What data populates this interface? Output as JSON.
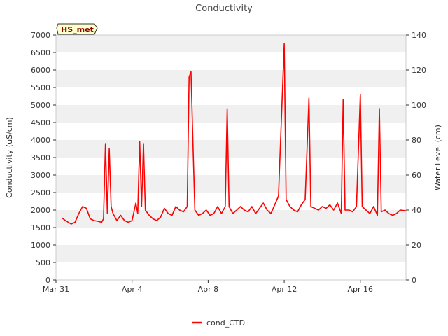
{
  "chart_data": {
    "type": "line",
    "title": "Conductivity",
    "badge": "HS_met",
    "ylabel_left": "Conductivity (uS/cm)",
    "ylabel_right": "Water Level (cm)",
    "xlabel": "",
    "x_range_days": [
      0,
      18.4
    ],
    "x_ticks": [
      {
        "label": "Mar 31",
        "day": 0
      },
      {
        "label": "Apr 4",
        "day": 4
      },
      {
        "label": "Apr 8",
        "day": 8
      },
      {
        "label": "Apr 12",
        "day": 12
      },
      {
        "label": "Apr 16",
        "day": 16
      }
    ],
    "ylim_left": [
      0,
      7000
    ],
    "y_ticks_left": [
      0,
      500,
      1000,
      1500,
      2000,
      2500,
      3000,
      3500,
      4000,
      4500,
      5000,
      5500,
      6000,
      6500,
      7000
    ],
    "ylim_right": [
      0,
      140
    ],
    "y_ticks_right": [
      0,
      20,
      40,
      60,
      80,
      100,
      120,
      140
    ],
    "grid": "horizontal-bands",
    "legend_position": "bottom-center",
    "series": [
      {
        "name": "cond_CTD",
        "color": "#ff0000",
        "axis": "left",
        "points": [
          [
            0.3,
            1780
          ],
          [
            0.5,
            1700
          ],
          [
            0.8,
            1600
          ],
          [
            1.0,
            1650
          ],
          [
            1.2,
            1900
          ],
          [
            1.4,
            2100
          ],
          [
            1.6,
            2050
          ],
          [
            1.8,
            1750
          ],
          [
            2.0,
            1700
          ],
          [
            2.2,
            1680
          ],
          [
            2.4,
            1650
          ],
          [
            2.5,
            1750
          ],
          [
            2.6,
            3900
          ],
          [
            2.7,
            1900
          ],
          [
            2.8,
            3750
          ],
          [
            2.9,
            2100
          ],
          [
            3.0,
            1900
          ],
          [
            3.2,
            1700
          ],
          [
            3.4,
            1850
          ],
          [
            3.6,
            1700
          ],
          [
            3.8,
            1650
          ],
          [
            4.0,
            1700
          ],
          [
            4.2,
            2200
          ],
          [
            4.3,
            1900
          ],
          [
            4.4,
            3950
          ],
          [
            4.5,
            2100
          ],
          [
            4.6,
            3900
          ],
          [
            4.7,
            2000
          ],
          [
            4.9,
            1850
          ],
          [
            5.1,
            1750
          ],
          [
            5.3,
            1700
          ],
          [
            5.5,
            1800
          ],
          [
            5.7,
            2050
          ],
          [
            5.9,
            1900
          ],
          [
            6.1,
            1850
          ],
          [
            6.3,
            2100
          ],
          [
            6.5,
            2000
          ],
          [
            6.7,
            1950
          ],
          [
            6.9,
            2100
          ],
          [
            7.0,
            5800
          ],
          [
            7.1,
            5950
          ],
          [
            7.2,
            3900
          ],
          [
            7.3,
            2000
          ],
          [
            7.5,
            1850
          ],
          [
            7.7,
            1900
          ],
          [
            7.9,
            2000
          ],
          [
            8.1,
            1850
          ],
          [
            8.3,
            1900
          ],
          [
            8.5,
            2100
          ],
          [
            8.7,
            1900
          ],
          [
            8.9,
            2100
          ],
          [
            9.0,
            4900
          ],
          [
            9.1,
            2100
          ],
          [
            9.3,
            1900
          ],
          [
            9.5,
            2000
          ],
          [
            9.7,
            2100
          ],
          [
            9.9,
            2000
          ],
          [
            10.1,
            1950
          ],
          [
            10.3,
            2100
          ],
          [
            10.5,
            1900
          ],
          [
            10.7,
            2050
          ],
          [
            10.9,
            2200
          ],
          [
            11.1,
            2000
          ],
          [
            11.3,
            1900
          ],
          [
            11.5,
            2150
          ],
          [
            11.7,
            2400
          ],
          [
            12.0,
            6750
          ],
          [
            12.1,
            2300
          ],
          [
            12.3,
            2100
          ],
          [
            12.5,
            2000
          ],
          [
            12.7,
            1950
          ],
          [
            12.9,
            2150
          ],
          [
            13.1,
            2300
          ],
          [
            13.3,
            5200
          ],
          [
            13.4,
            2100
          ],
          [
            13.6,
            2050
          ],
          [
            13.8,
            2000
          ],
          [
            14.0,
            2100
          ],
          [
            14.2,
            2050
          ],
          [
            14.4,
            2150
          ],
          [
            14.6,
            2000
          ],
          [
            14.8,
            2200
          ],
          [
            15.0,
            1900
          ],
          [
            15.1,
            5150
          ],
          [
            15.2,
            2000
          ],
          [
            15.4,
            2000
          ],
          [
            15.6,
            1950
          ],
          [
            15.8,
            2100
          ],
          [
            16.0,
            5300
          ],
          [
            16.1,
            2100
          ],
          [
            16.3,
            2000
          ],
          [
            16.5,
            1900
          ],
          [
            16.7,
            2100
          ],
          [
            16.9,
            1850
          ],
          [
            17.0,
            4900
          ],
          [
            17.1,
            1950
          ],
          [
            17.3,
            2000
          ],
          [
            17.5,
            1900
          ],
          [
            17.7,
            1850
          ],
          [
            17.9,
            1900
          ],
          [
            18.1,
            2000
          ],
          [
            18.4,
            1980
          ]
        ]
      }
    ]
  }
}
